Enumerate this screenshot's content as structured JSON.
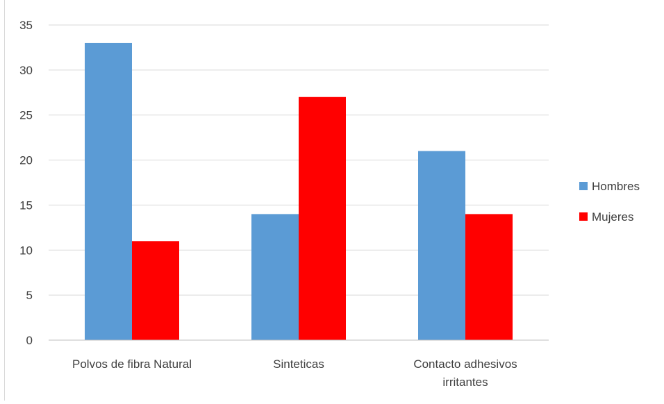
{
  "chart_data": {
    "type": "bar",
    "title": "",
    "xlabel": "",
    "ylabel": "",
    "categories": [
      "Polvos de fibra Natural",
      "Sinteticas",
      "Contacto adhesivos irritantes"
    ],
    "category_lines": [
      [
        "Polvos de fibra Natural"
      ],
      [
        "Sinteticas"
      ],
      [
        "Contacto adhesivos",
        "irritantes"
      ]
    ],
    "series": [
      {
        "name": "Hombres",
        "color": "#5b9bd5",
        "values": [
          33,
          14,
          21
        ]
      },
      {
        "name": "Mujeres",
        "color": "#ff0000",
        "values": [
          11,
          27,
          14
        ]
      }
    ],
    "ylim": [
      0,
      35
    ],
    "yticks": [
      0,
      5,
      10,
      15,
      20,
      25,
      30,
      35
    ],
    "grid": true,
    "legend": "right"
  }
}
